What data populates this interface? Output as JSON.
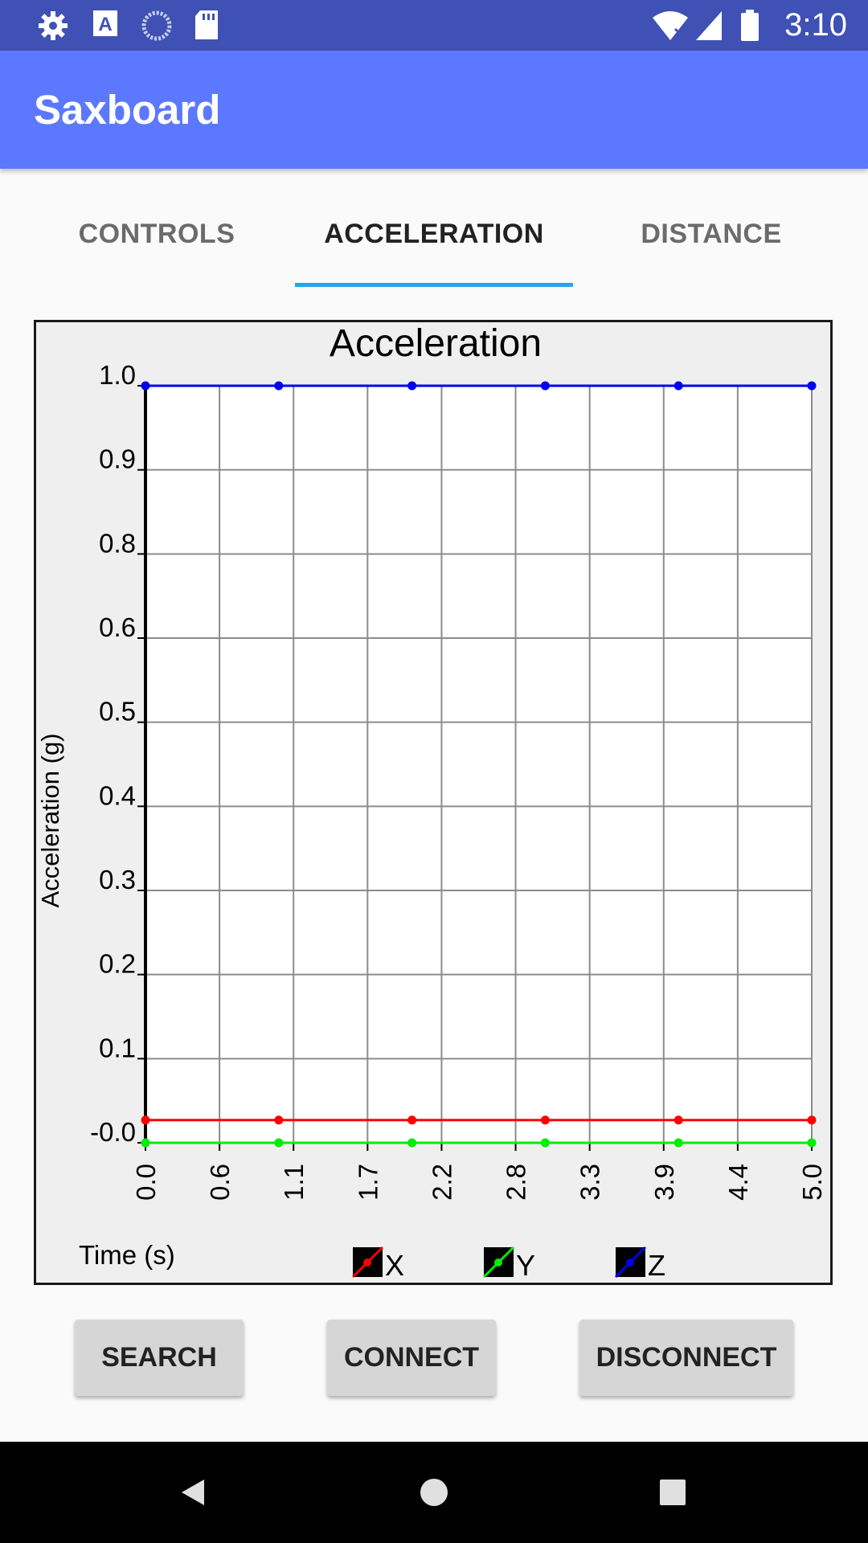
{
  "status_bar": {
    "time": "3:10",
    "left_icons": [
      "gear-icon",
      "text-a-icon",
      "sync-circle-icon",
      "sd-card-icon"
    ],
    "right_icons": [
      "wifi-off-icon",
      "signal-icon",
      "battery-icon"
    ]
  },
  "app": {
    "title": "Saxboard"
  },
  "tabs": [
    {
      "label": "CONTROLS",
      "active": false
    },
    {
      "label": "ACCELERATION",
      "active": true
    },
    {
      "label": "DISTANCE",
      "active": false
    }
  ],
  "colors": {
    "status_bar": "#3f51b5",
    "app_bar": "#5c78ff",
    "tab_indicator": "#1fa7e8",
    "series_x": "#ff0000",
    "series_y": "#00ee00",
    "series_z": "#0000ee"
  },
  "chart_data": {
    "type": "line",
    "title": "Acceleration",
    "xlabel": "Time (s)",
    "ylabel": "Acceleration (g)",
    "x_ticks": [
      "0.0",
      "0.6",
      "1.1",
      "1.7",
      "2.2",
      "2.8",
      "3.3",
      "3.9",
      "4.4",
      "5.0"
    ],
    "y_ticks": [
      "-0.0",
      "0.1",
      "0.2",
      "0.3",
      "0.4",
      "0.5",
      "0.6",
      "0.8",
      "0.9",
      "1.0"
    ],
    "xlim": [
      0,
      5.0
    ],
    "ylim": [
      0,
      1.0
    ],
    "grid": true,
    "legend_position": "bottom",
    "x": [
      0,
      1.0,
      2.0,
      3.0,
      4.0,
      5.0
    ],
    "series": [
      {
        "name": "X",
        "color": "#ff0000",
        "values": [
          0.03,
          0.03,
          0.03,
          0.03,
          0.03,
          0.03
        ]
      },
      {
        "name": "Y",
        "color": "#00ee00",
        "values": [
          0.0,
          0.0,
          0.0,
          0.0,
          0.0,
          0.0
        ]
      },
      {
        "name": "Z",
        "color": "#0000ee",
        "values": [
          1.0,
          1.0,
          1.0,
          1.0,
          1.0,
          1.0
        ]
      }
    ]
  },
  "buttons": {
    "search": "SEARCH",
    "connect": "CONNECT",
    "disconnect": "DISCONNECT"
  },
  "nav": {
    "back_icon": "back-triangle-icon",
    "home_icon": "home-circle-icon",
    "recents_icon": "recents-square-icon"
  }
}
